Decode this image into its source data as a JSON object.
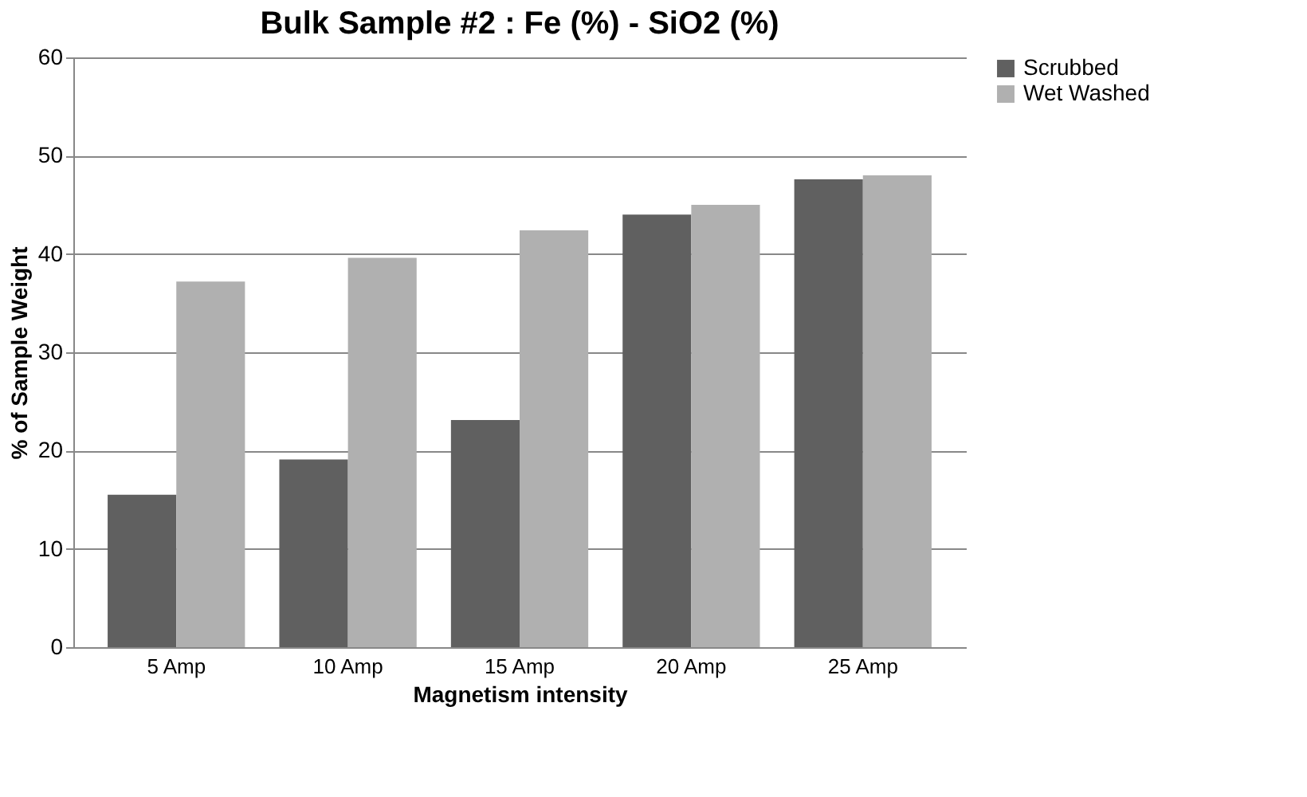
{
  "chart_data": {
    "type": "bar",
    "title": "Bulk Sample #2 : Fe (%) - SiO2 (%)",
    "xlabel": "Magnetism intensity",
    "ylabel": "% of Sample Weight",
    "categories": [
      "5 Amp",
      "10 Amp",
      "15 Amp",
      "20 Amp",
      "25 Amp"
    ],
    "series": [
      {
        "name": "Scrubbed",
        "color": "#606060",
        "values": [
          15.5,
          19.1,
          23.1,
          44.0,
          47.6
        ]
      },
      {
        "name": "Wet Washed",
        "color": "#b0b0b0",
        "values": [
          37.2,
          39.6,
          42.4,
          45.0,
          48.0
        ]
      }
    ],
    "ylim": [
      0,
      60
    ],
    "yticks": [
      0,
      10,
      20,
      30,
      40,
      50,
      60
    ],
    "grid": "y",
    "legend": "right"
  }
}
